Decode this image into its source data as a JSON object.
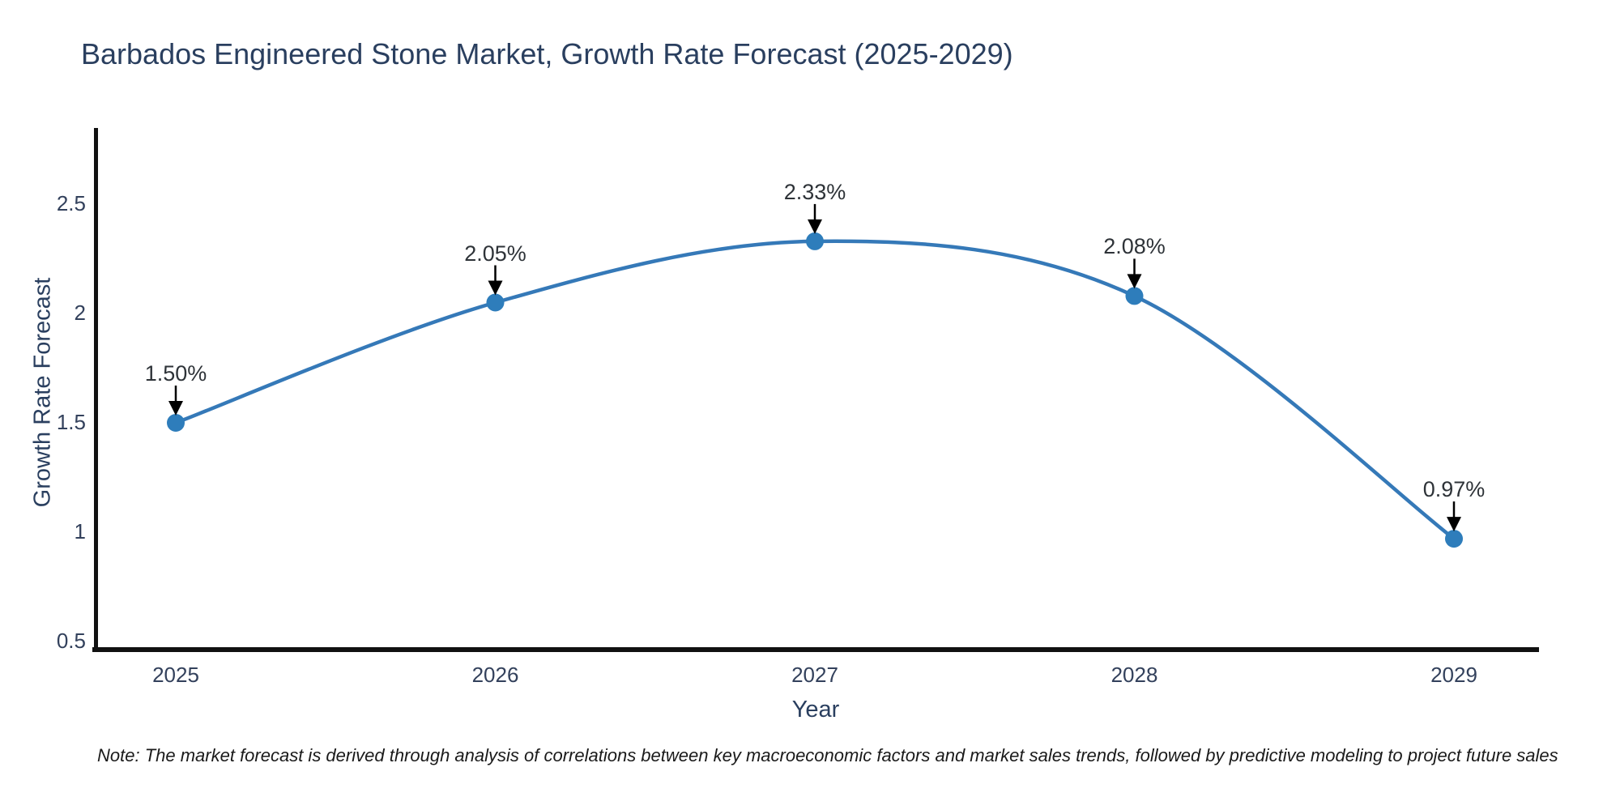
{
  "chart_data": {
    "type": "line",
    "title": "Barbados Engineered Stone Market, Growth Rate Forecast (2025-2029)",
    "xlabel": "Year",
    "ylabel": "Growth Rate Forecast",
    "categories": [
      "2025",
      "2026",
      "2027",
      "2028",
      "2029"
    ],
    "values": [
      1.5,
      2.05,
      2.33,
      2.08,
      0.97
    ],
    "point_labels": [
      "1.50%",
      "2.05%",
      "2.33%",
      "2.08%",
      "0.97%"
    ],
    "ytick_values": [
      0.5,
      1,
      1.5,
      2,
      2.5
    ],
    "ytick_labels": [
      "0.5",
      "1",
      "1.5",
      "2",
      "2.5"
    ],
    "ylim": [
      0.5,
      2.9
    ],
    "line_shape": "spline",
    "grid": false,
    "legend_position": "none",
    "annotation_arrows": true,
    "line_color": "#3579b8",
    "marker_color": "#2e7dbb",
    "arrow_color": "#000000",
    "axis_line_color": "#111111",
    "title_color": "#2a3f5f"
  },
  "note": "Note: The market forecast is derived through analysis of correlations between key macroeconomic factors and market sales trends, followed by predictive modeling to project future sales"
}
